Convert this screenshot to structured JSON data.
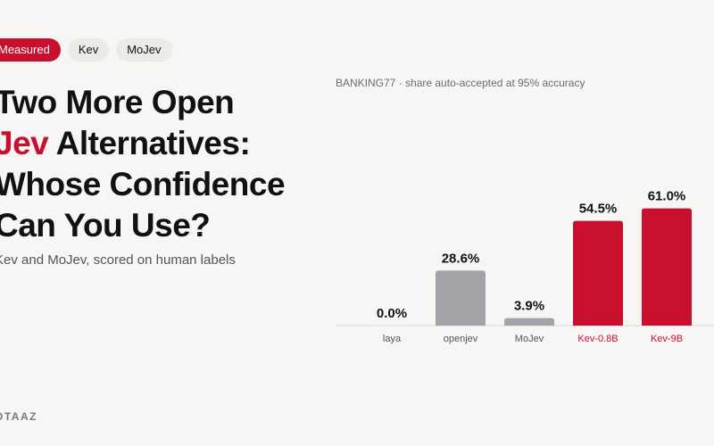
{
  "tags": [
    {
      "label": "Measured",
      "active": true
    },
    {
      "label": "Kev",
      "active": false
    },
    {
      "label": "MoJev",
      "active": false
    }
  ],
  "headline": {
    "line1": "Two More Open",
    "line2_accent": "Jev",
    "line2_rest": " Alternatives:",
    "line3": "Whose Confidence",
    "line4": "Can You Use?"
  },
  "subtitle": "Kev and MoJev, scored on human labels",
  "brand": "OTAAZ",
  "colors": {
    "accent": "#c8102e",
    "neutral_bar": "#a3a3a9",
    "baseline": "#d4d4d4"
  },
  "chart_data": {
    "type": "bar",
    "title": "BANKING77 · share auto-accepted at 95% accuracy",
    "categories": [
      "laya",
      "openjev",
      "MoJev",
      "Kev-0.8B",
      "Kev-9B"
    ],
    "values": [
      0.0,
      28.6,
      3.9,
      54.5,
      61.0
    ],
    "value_labels": [
      "0.0%",
      "28.6%",
      "3.9%",
      "54.5%",
      "61.0%"
    ],
    "highlighted": [
      false,
      false,
      false,
      true,
      true
    ],
    "ylim": [
      0,
      65
    ],
    "grid": false,
    "legend": "none"
  }
}
